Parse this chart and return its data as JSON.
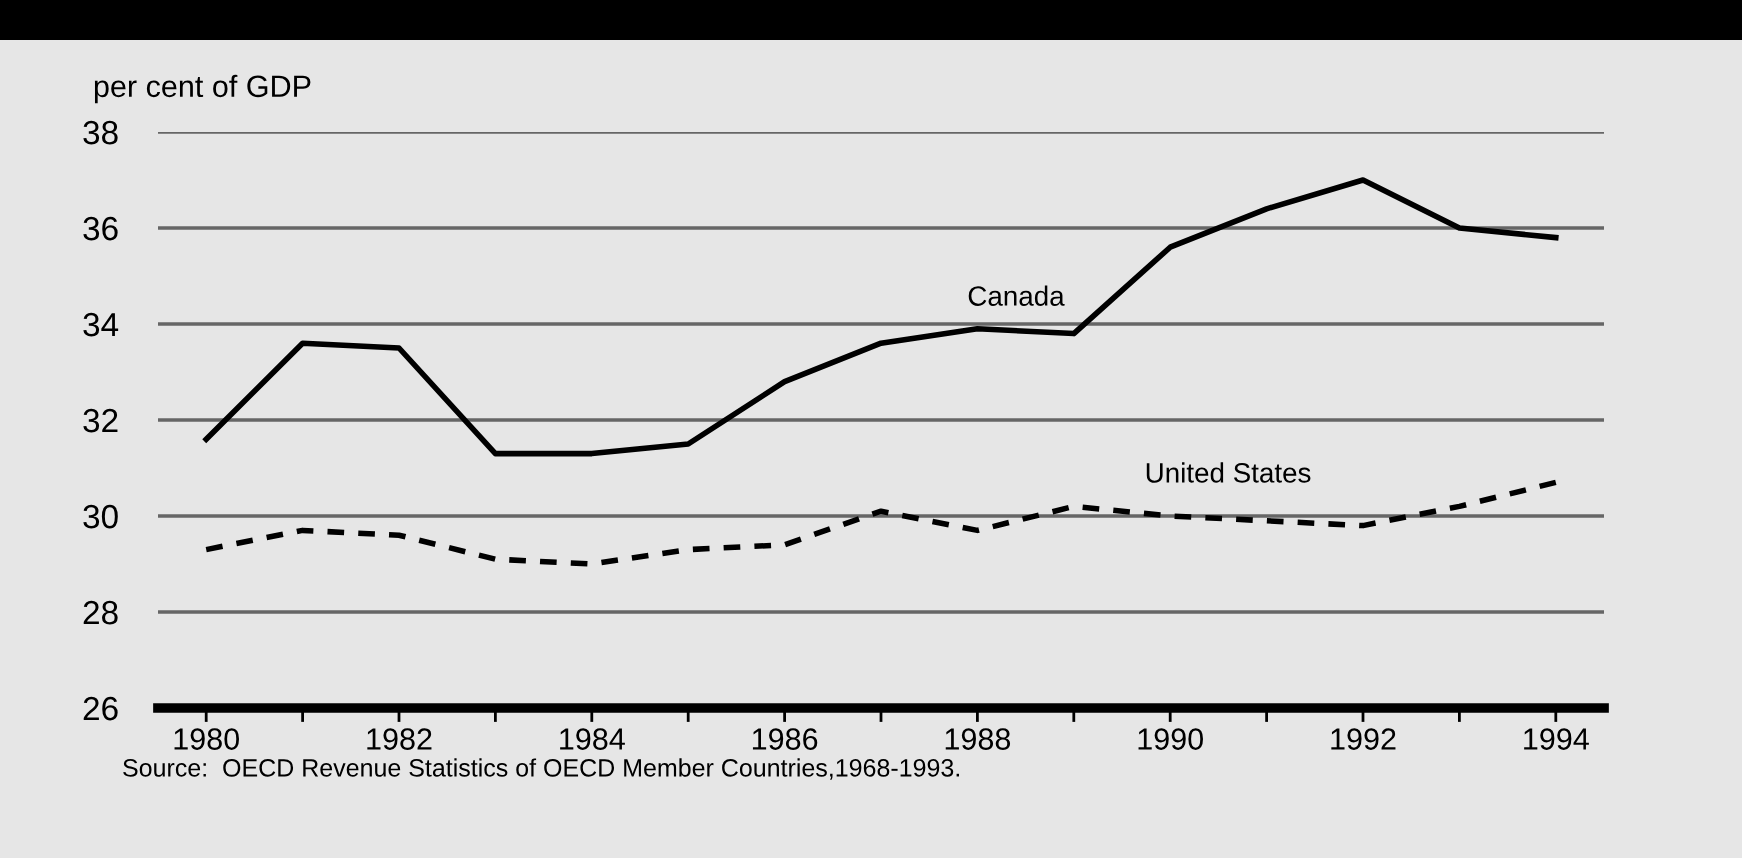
{
  "chart_data": {
    "type": "line",
    "ylabel": "per cent of GDP",
    "x": [
      1980,
      1981,
      1982,
      1983,
      1984,
      1985,
      1986,
      1987,
      1988,
      1989,
      1990,
      1991,
      1992,
      1993,
      1994
    ],
    "series": [
      {
        "name": "Canada",
        "color": "#000000",
        "line_style": "solid",
        "values": [
          31.6,
          33.6,
          33.5,
          31.3,
          31.3,
          31.5,
          32.8,
          33.6,
          33.9,
          33.8,
          35.6,
          36.4,
          37.0,
          36.0,
          35.8
        ]
      },
      {
        "name": "United States",
        "color": "#000000",
        "line_style": "dashed",
        "values": [
          29.3,
          29.7,
          29.6,
          29.1,
          29.0,
          29.3,
          29.4,
          30.1,
          29.7,
          30.2,
          30.0,
          29.9,
          29.8,
          30.2,
          30.7
        ]
      }
    ],
    "xlim": [
      1979.5,
      1994.5
    ],
    "ylim": [
      26,
      38
    ],
    "xticks": [
      1980,
      {
        "value": 1981,
        "label": null
      },
      1982,
      {
        "value": 1983,
        "label": null
      },
      1984,
      {
        "value": 1985,
        "label": null
      },
      1986,
      {
        "value": 1987,
        "label": null
      },
      1988,
      {
        "value": 1989,
        "label": null
      },
      1990,
      {
        "value": 1991,
        "label": null
      },
      1992,
      {
        "value": 1993,
        "label": null
      },
      1994
    ],
    "yticks": [
      26,
      28,
      30,
      32,
      34,
      36,
      38
    ],
    "grid": "y",
    "legend": false,
    "marker": "none",
    "annotations": [
      "Source:  OECD Revenue Statistics of OECD Member Countries,1968-1993."
    ]
  }
}
